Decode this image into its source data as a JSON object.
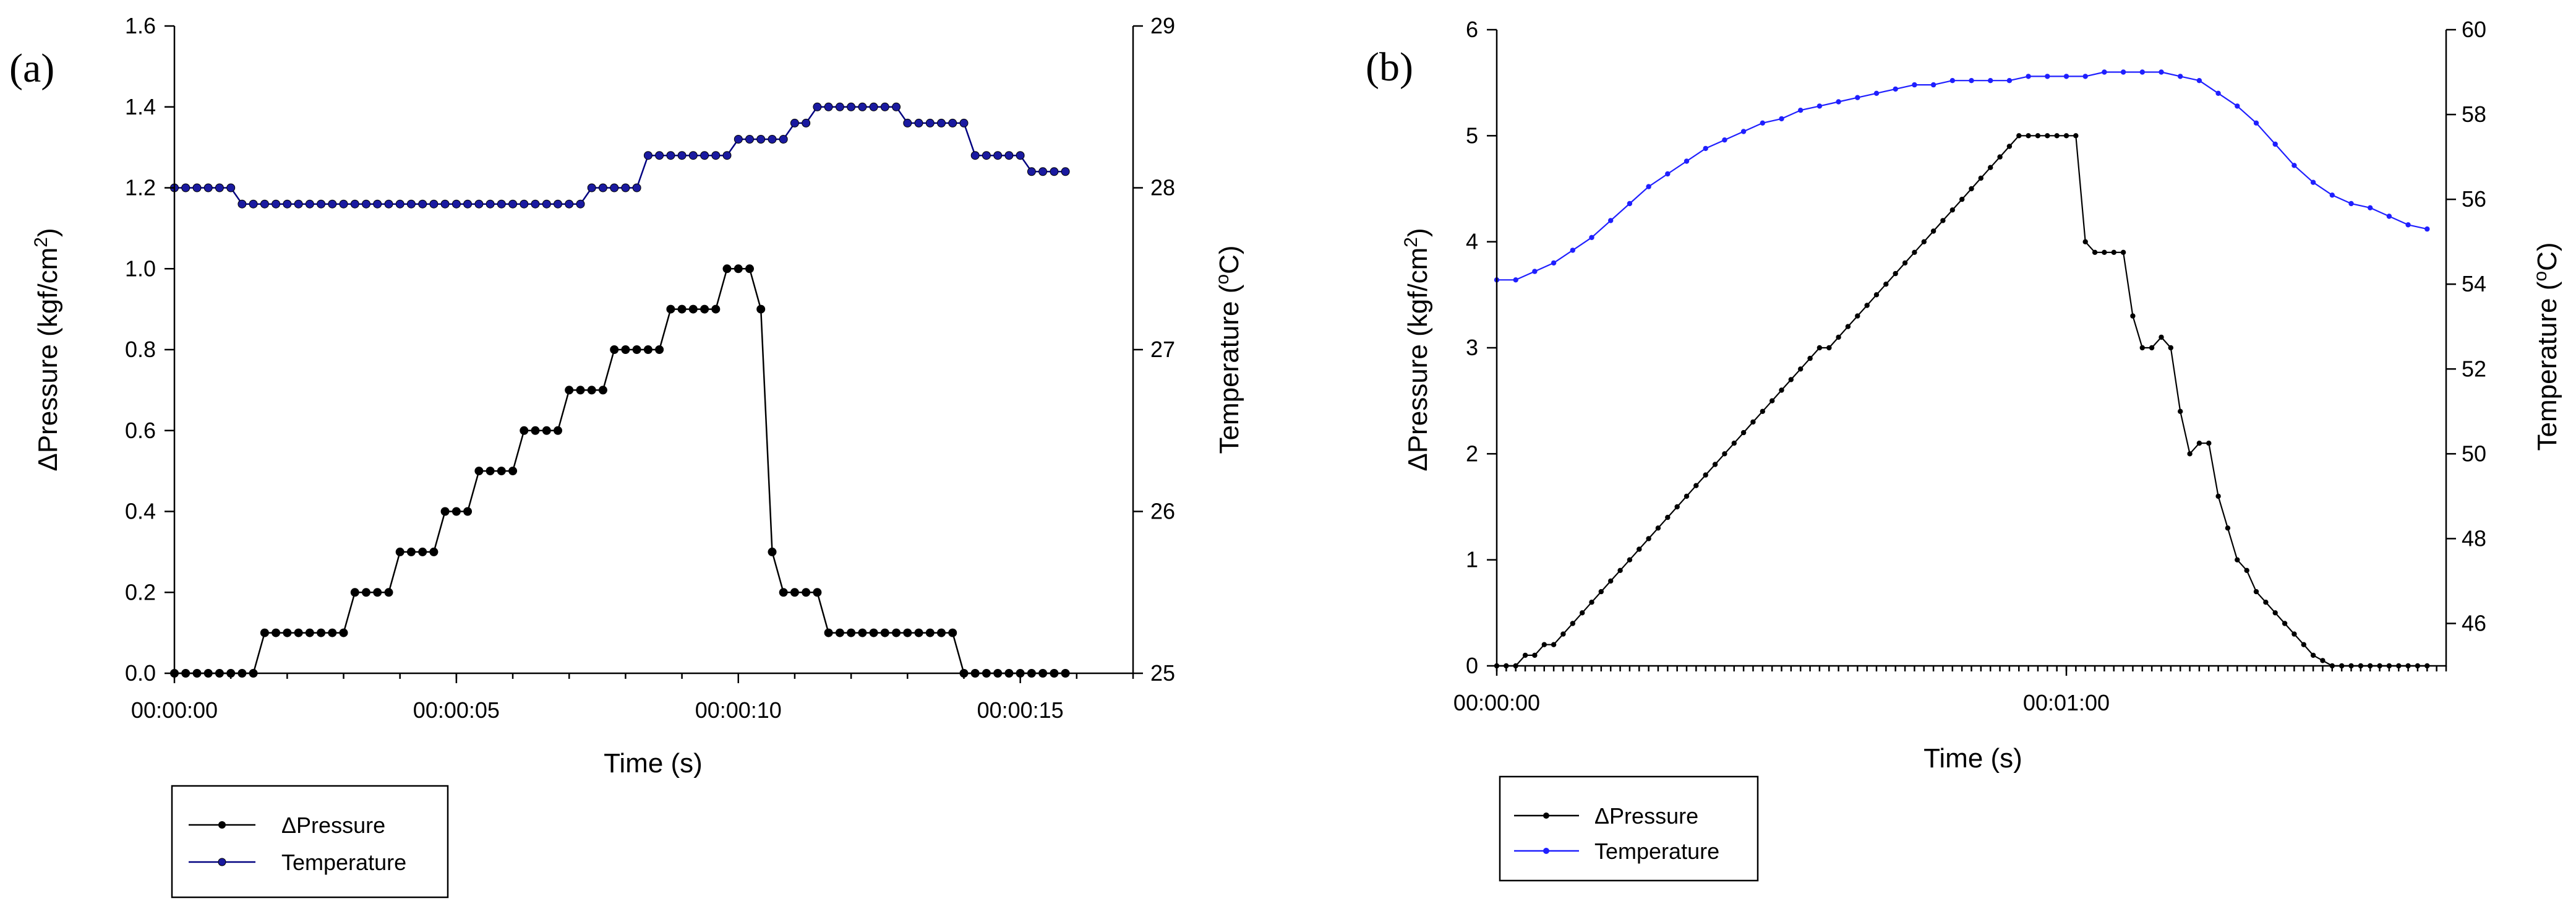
{
  "chart_data": [
    {
      "type": "line",
      "panel_label": "(a)",
      "xlabel": "Time (s)",
      "ylabel": "ΔPressure (kgf/cm²)",
      "ylabel_parts": {
        "prefix": "ΔPressure (kgf/cm",
        "sup": "2",
        "suffix": ")"
      },
      "y2label": "Temperature (°C)",
      "y2label_parts": {
        "prefix": "Temperature (",
        "sup": "o",
        "suffix": "C)"
      },
      "xlim": [
        0,
        17
      ],
      "ylim": [
        0,
        1.6
      ],
      "y2lim": [
        25,
        29
      ],
      "x_ticks": [
        {
          "value": 0,
          "label": "00:00:00"
        },
        {
          "value": 5,
          "label": "00:00:05"
        },
        {
          "value": 10,
          "label": "00:00:10"
        },
        {
          "value": 15,
          "label": "00:00:15"
        }
      ],
      "y_ticks": [
        {
          "value": 0.0,
          "label": "0.0"
        },
        {
          "value": 0.2,
          "label": "0.2"
        },
        {
          "value": 0.4,
          "label": "0.4"
        },
        {
          "value": 0.6,
          "label": "0.6"
        },
        {
          "value": 0.8,
          "label": "0.8"
        },
        {
          "value": 1.0,
          "label": "1.0"
        },
        {
          "value": 1.2,
          "label": "1.2"
        },
        {
          "value": 1.4,
          "label": "1.4"
        },
        {
          "value": 1.6,
          "label": "1.6"
        }
      ],
      "y2_ticks": [
        {
          "value": 25,
          "label": "25"
        },
        {
          "value": 26,
          "label": "26"
        },
        {
          "value": 27,
          "label": "27"
        },
        {
          "value": 28,
          "label": "28"
        },
        {
          "value": 29,
          "label": "29"
        }
      ],
      "legend": {
        "placement": "bottom-left, below plot",
        "entries": [
          "ΔPressure",
          "Temperature"
        ]
      },
      "series": [
        {
          "name": "ΔPressure",
          "axis": "left",
          "color": "#000000",
          "marker_color": "#000000",
          "x": [
            0,
            0.2,
            0.4,
            0.6,
            0.8,
            1.0,
            1.2,
            1.4,
            1.6,
            1.8,
            2.0,
            2.2,
            2.4,
            2.6,
            2.8,
            3.0,
            3.2,
            3.4,
            3.6,
            3.8,
            4.0,
            4.2,
            4.4,
            4.6,
            4.8,
            5.0,
            5.2,
            5.4,
            5.6,
            5.8,
            6.0,
            6.2,
            6.4,
            6.6,
            6.8,
            7.0,
            7.2,
            7.4,
            7.6,
            7.8,
            8.0,
            8.2,
            8.4,
            8.6,
            8.8,
            9.0,
            9.2,
            9.4,
            9.6,
            9.8,
            10.0,
            10.2,
            10.4,
            10.6,
            10.8,
            11.0,
            11.2,
            11.4,
            11.6,
            11.8,
            12.0,
            12.2,
            12.4,
            12.6,
            12.8,
            13.0,
            13.2,
            13.4,
            13.6,
            13.8,
            14.0,
            14.2,
            14.4,
            14.6,
            14.8,
            15.0,
            15.2,
            15.4,
            15.6,
            15.8
          ],
          "values": [
            0,
            0,
            0,
            0,
            0,
            0,
            0,
            0,
            0.1,
            0.1,
            0.1,
            0.1,
            0.1,
            0.1,
            0.1,
            0.1,
            0.2,
            0.2,
            0.2,
            0.2,
            0.3,
            0.3,
            0.3,
            0.3,
            0.4,
            0.4,
            0.4,
            0.5,
            0.5,
            0.5,
            0.5,
            0.6,
            0.6,
            0.6,
            0.6,
            0.7,
            0.7,
            0.7,
            0.7,
            0.8,
            0.8,
            0.8,
            0.8,
            0.8,
            0.9,
            0.9,
            0.9,
            0.9,
            0.9,
            1.0,
            1.0,
            1.0,
            0.9,
            0.3,
            0.2,
            0.2,
            0.2,
            0.2,
            0.1,
            0.1,
            0.1,
            0.1,
            0.1,
            0.1,
            0.1,
            0.1,
            0.1,
            0.1,
            0.1,
            0.1,
            0,
            0,
            0,
            0,
            0,
            0,
            0,
            0,
            0,
            0
          ]
        },
        {
          "name": "Temperature",
          "axis": "right",
          "color": "#000080",
          "marker_color": "#1a1aa0",
          "x": [
            0,
            0.2,
            0.4,
            0.6,
            0.8,
            1.0,
            1.2,
            1.4,
            1.6,
            1.8,
            2.0,
            2.2,
            2.4,
            2.6,
            2.8,
            3.0,
            3.2,
            3.4,
            3.6,
            3.8,
            4.0,
            4.2,
            4.4,
            4.6,
            4.8,
            5.0,
            5.2,
            5.4,
            5.6,
            5.8,
            6.0,
            6.2,
            6.4,
            6.6,
            6.8,
            7.0,
            7.2,
            7.4,
            7.6,
            7.8,
            8.0,
            8.2,
            8.4,
            8.6,
            8.8,
            9.0,
            9.2,
            9.4,
            9.6,
            9.8,
            10.0,
            10.2,
            10.4,
            10.6,
            10.8,
            11.0,
            11.2,
            11.4,
            11.6,
            11.8,
            12.0,
            12.2,
            12.4,
            12.6,
            12.8,
            13.0,
            13.2,
            13.4,
            13.6,
            13.8,
            14.0,
            14.2,
            14.4,
            14.6,
            14.8,
            15.0,
            15.2,
            15.4,
            15.6,
            15.8
          ],
          "values": [
            28.0,
            28.0,
            28.0,
            28.0,
            28.0,
            28.0,
            27.9,
            27.9,
            27.9,
            27.9,
            27.9,
            27.9,
            27.9,
            27.9,
            27.9,
            27.9,
            27.9,
            27.9,
            27.9,
            27.9,
            27.9,
            27.9,
            27.9,
            27.9,
            27.9,
            27.9,
            27.9,
            27.9,
            27.9,
            27.9,
            27.9,
            27.9,
            27.9,
            27.9,
            27.9,
            27.9,
            27.9,
            28.0,
            28.0,
            28.0,
            28.0,
            28.0,
            28.2,
            28.2,
            28.2,
            28.2,
            28.2,
            28.2,
            28.2,
            28.2,
            28.3,
            28.3,
            28.3,
            28.3,
            28.3,
            28.4,
            28.4,
            28.5,
            28.5,
            28.5,
            28.5,
            28.5,
            28.5,
            28.5,
            28.5,
            28.4,
            28.4,
            28.4,
            28.4,
            28.4,
            28.4,
            28.2,
            28.2,
            28.2,
            28.2,
            28.2,
            28.1,
            28.1,
            28.1,
            28.1
          ]
        }
      ]
    },
    {
      "type": "line",
      "panel_label": "(b)",
      "xlabel": "Time (s)",
      "ylabel": "ΔPressure (kgf/cm²)",
      "ylabel_parts": {
        "prefix": "ΔPressure (kgf/cm",
        "sup": "2",
        "suffix": ")"
      },
      "y2label": "Temperature (°C)",
      "y2label_parts": {
        "prefix": "Temperature (",
        "sup": "o",
        "suffix": "C)"
      },
      "xlim": [
        0,
        100
      ],
      "ylim": [
        0,
        6
      ],
      "y2lim": [
        45,
        60
      ],
      "x_ticks": [
        {
          "value": 0,
          "label": "00:00:00"
        },
        {
          "value": 60,
          "label": "00:01:00"
        }
      ],
      "y_ticks": [
        {
          "value": 0,
          "label": "0"
        },
        {
          "value": 1,
          "label": "1"
        },
        {
          "value": 2,
          "label": "2"
        },
        {
          "value": 3,
          "label": "3"
        },
        {
          "value": 4,
          "label": "4"
        },
        {
          "value": 5,
          "label": "5"
        },
        {
          "value": 6,
          "label": "6"
        }
      ],
      "y2_ticks": [
        {
          "value": 46,
          "label": "46"
        },
        {
          "value": 48,
          "label": "48"
        },
        {
          "value": 50,
          "label": "50"
        },
        {
          "value": 52,
          "label": "52"
        },
        {
          "value": 54,
          "label": "54"
        },
        {
          "value": 56,
          "label": "56"
        },
        {
          "value": 58,
          "label": "58"
        },
        {
          "value": 60,
          "label": "60"
        }
      ],
      "legend": {
        "placement": "bottom-left, below plot",
        "entries": [
          "ΔPressure",
          "Temperature"
        ]
      },
      "series": [
        {
          "name": "ΔPressure",
          "axis": "left",
          "color": "#000000",
          "marker_color": "#000000",
          "x": [
            0,
            1,
            2,
            3,
            4,
            5,
            6,
            7,
            8,
            9,
            10,
            11,
            12,
            13,
            14,
            15,
            16,
            17,
            18,
            19,
            20,
            21,
            22,
            23,
            24,
            25,
            26,
            27,
            28,
            29,
            30,
            31,
            32,
            33,
            34,
            35,
            36,
            37,
            38,
            39,
            40,
            41,
            42,
            43,
            44,
            45,
            46,
            47,
            48,
            49,
            50,
            51,
            52,
            53,
            54,
            55,
            56,
            57,
            58,
            59,
            60,
            61,
            62,
            63,
            64,
            65,
            66,
            67,
            68,
            69,
            70,
            71,
            72,
            73,
            74,
            75,
            76,
            77,
            78,
            79,
            80,
            81,
            82,
            83,
            84,
            85,
            86,
            87,
            88,
            89,
            90,
            91,
            92,
            93,
            94,
            95,
            96,
            97,
            98
          ],
          "values": [
            0.0,
            0.0,
            0.0,
            0.1,
            0.1,
            0.2,
            0.2,
            0.3,
            0.4,
            0.5,
            0.6,
            0.7,
            0.8,
            0.9,
            1.0,
            1.1,
            1.2,
            1.3,
            1.4,
            1.5,
            1.6,
            1.7,
            1.8,
            1.9,
            2.0,
            2.1,
            2.2,
            2.3,
            2.4,
            2.5,
            2.6,
            2.7,
            2.8,
            2.9,
            3.0,
            3.0,
            3.1,
            3.2,
            3.3,
            3.4,
            3.5,
            3.6,
            3.7,
            3.8,
            3.9,
            4.0,
            4.1,
            4.2,
            4.3,
            4.4,
            4.5,
            4.6,
            4.7,
            4.8,
            4.9,
            5.0,
            5.0,
            5.0,
            5.0,
            5.0,
            5.0,
            5.0,
            4.0,
            3.9,
            3.9,
            3.9,
            3.9,
            3.3,
            3.0,
            3.0,
            3.1,
            3.0,
            2.4,
            2.0,
            2.1,
            2.1,
            1.6,
            1.3,
            1.0,
            0.9,
            0.7,
            0.6,
            0.5,
            0.4,
            0.3,
            0.2,
            0.1,
            0.05,
            0.0,
            0.0,
            0.0,
            0.0,
            0.0,
            0.0,
            0.0,
            0.0,
            0.0,
            0.0,
            0.0
          ]
        },
        {
          "name": "Temperature",
          "axis": "right",
          "color": "#1f1fff",
          "marker_color": "#1f1fff",
          "x": [
            0,
            2,
            4,
            6,
            8,
            10,
            12,
            14,
            16,
            18,
            20,
            22,
            24,
            26,
            28,
            30,
            32,
            34,
            36,
            38,
            40,
            42,
            44,
            46,
            48,
            50,
            52,
            54,
            56,
            58,
            60,
            62,
            64,
            66,
            68,
            70,
            72,
            74,
            76,
            78,
            80,
            82,
            84,
            86,
            88,
            90,
            92,
            94,
            96,
            98
          ],
          "values": [
            54.1,
            54.1,
            54.3,
            54.5,
            54.8,
            55.1,
            55.5,
            55.9,
            56.3,
            56.6,
            56.9,
            57.2,
            57.4,
            57.6,
            57.8,
            57.9,
            58.1,
            58.2,
            58.3,
            58.4,
            58.5,
            58.6,
            58.7,
            58.7,
            58.8,
            58.8,
            58.8,
            58.8,
            58.9,
            58.9,
            58.9,
            58.9,
            59.0,
            59.0,
            59.0,
            59.0,
            58.9,
            58.8,
            58.5,
            58.2,
            57.8,
            57.3,
            56.8,
            56.4,
            56.1,
            55.9,
            55.8,
            55.6,
            55.4,
            55.3
          ]
        }
      ]
    }
  ]
}
